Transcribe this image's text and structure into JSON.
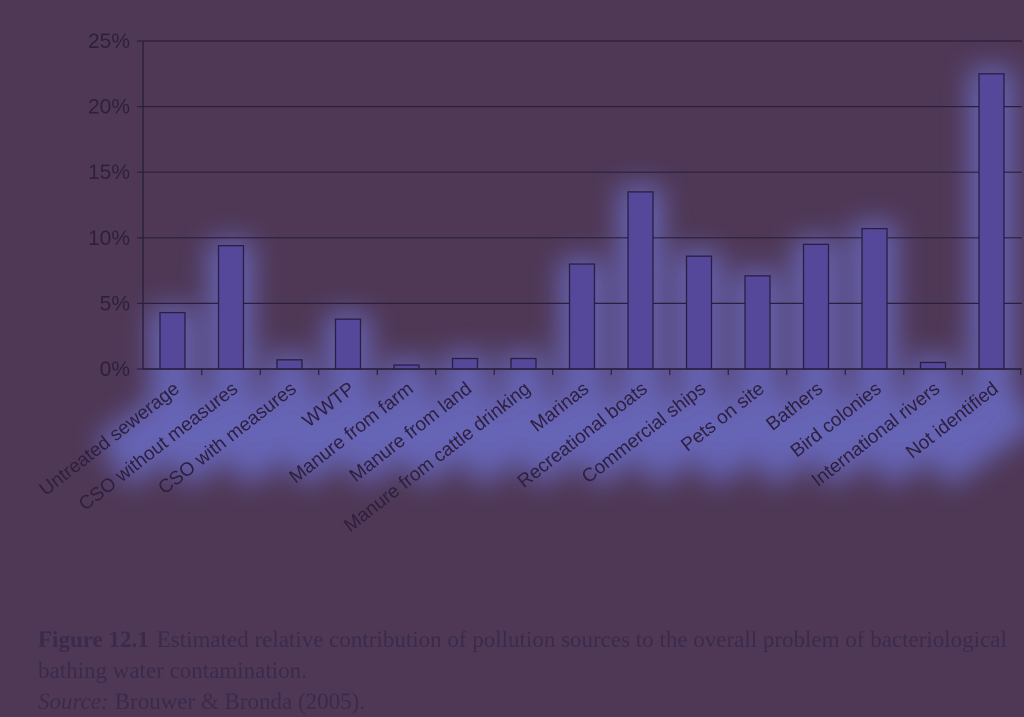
{
  "chart_data": {
    "type": "bar",
    "categories": [
      "Untreated sewerage",
      "CSO without measures",
      "CSO with measures",
      "WWTP",
      "Manure from farm",
      "Manure from land",
      "Manure from cattle drinking",
      "Marinas",
      "Recreational boats",
      "Commercial ships",
      "Pets on site",
      "Bathers",
      "Bird colonies",
      "International rivers",
      "Not identified"
    ],
    "values": [
      4.3,
      9.4,
      0.7,
      3.8,
      0.3,
      0.8,
      0.8,
      8.0,
      13.5,
      8.6,
      7.1,
      9.5,
      10.7,
      0.5,
      22.5
    ],
    "ylim": [
      0,
      25
    ],
    "yticks": [
      "0%",
      "5%",
      "10%",
      "15%",
      "20%",
      "25%"
    ],
    "grid": true,
    "colors": {
      "bar_fill": "#55479a",
      "bar_stroke": "#2a1f3e",
      "grid": "#2a1f3e",
      "glow": "#6e73d6"
    }
  },
  "caption": {
    "figure_label": "Figure 12.1",
    "text": "Estimated relative contribution of pollution sources to the overall problem of bacteriological bathing water contamination.",
    "source_label": "Source:",
    "source_text": "Brouwer & Bronda (2005)."
  }
}
